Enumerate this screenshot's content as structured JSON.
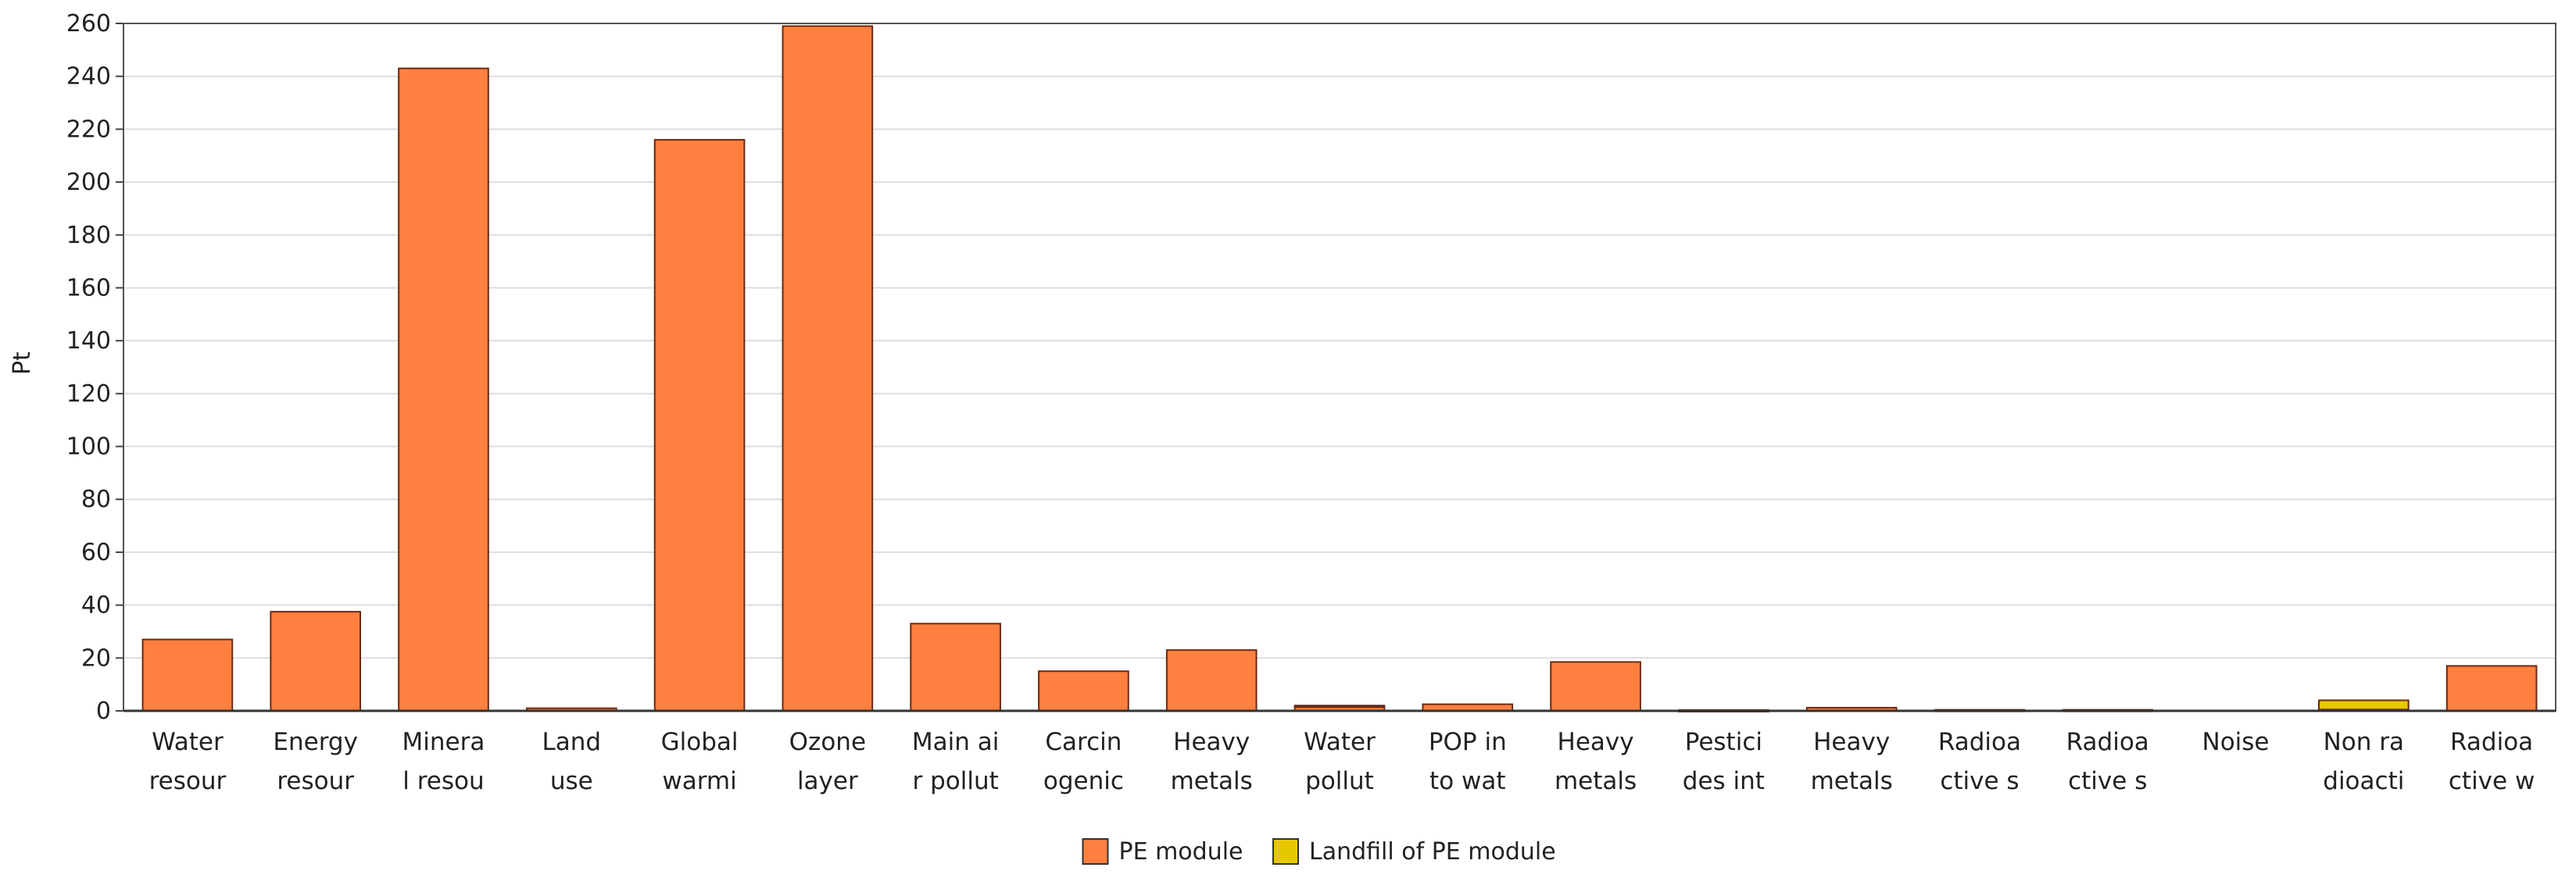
{
  "chart_data": {
    "type": "bar",
    "title": "",
    "xlabel": "",
    "ylabel": "Pt",
    "ylim": [
      0,
      260
    ],
    "yticks": [
      0,
      20,
      40,
      60,
      80,
      100,
      120,
      140,
      160,
      180,
      200,
      220,
      240,
      260
    ],
    "grid": true,
    "legend_position": "bottom-center",
    "categories": [
      [
        "Water",
        "resour"
      ],
      [
        "Energy",
        "resour"
      ],
      [
        "Minera",
        "l resou"
      ],
      [
        "Land",
        "use"
      ],
      [
        "Global",
        "warmi"
      ],
      [
        "Ozone",
        "layer"
      ],
      [
        "Main ai",
        "r pollut"
      ],
      [
        "Carcin",
        "ogenic"
      ],
      [
        "Heavy",
        "metals"
      ],
      [
        "Water",
        "pollut"
      ],
      [
        "POP in",
        "to wat"
      ],
      [
        "Heavy",
        "metals"
      ],
      [
        "Pestici",
        "des int"
      ],
      [
        "Heavy",
        "metals"
      ],
      [
        "Radioa",
        "ctive s"
      ],
      [
        "Radioa",
        "ctive s"
      ],
      [
        "Noise",
        ""
      ],
      [
        "Non ra",
        "dioacti"
      ],
      [
        "Radioa",
        "ctive w"
      ]
    ],
    "series": [
      {
        "name": "PE module",
        "color": "#FF8040",
        "values": [
          27,
          37.5,
          243,
          1,
          216,
          259,
          33,
          15,
          23,
          1.5,
          2.5,
          18.5,
          0.3,
          1.2,
          0.4,
          0.4,
          0,
          0.5,
          17
        ]
      },
      {
        "name": "Landfill of PE module",
        "color": "#E6C800",
        "values": [
          0,
          0,
          0,
          0,
          0,
          0,
          0,
          0,
          0,
          0.5,
          0,
          0,
          0,
          0,
          0,
          0,
          0,
          3.5,
          0
        ]
      }
    ]
  }
}
